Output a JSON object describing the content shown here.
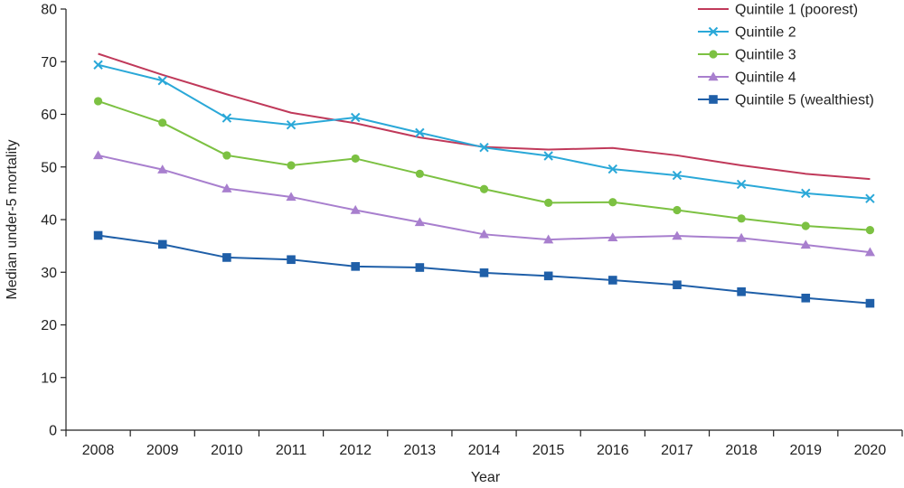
{
  "chart_data": {
    "type": "line",
    "xlabel": "Year",
    "ylabel": "Median under-5 mortality",
    "ylim": [
      0,
      80
    ],
    "yticks": [
      0,
      10,
      20,
      30,
      40,
      50,
      60,
      70,
      80
    ],
    "x": [
      "2008",
      "2009",
      "2010",
      "2011",
      "2012",
      "2013",
      "2014",
      "2015",
      "2016",
      "2017",
      "2018",
      "2019",
      "2020"
    ],
    "legend": "top-right",
    "grid": false,
    "series": [
      {
        "name": "Quintile 1 (poorest)",
        "color": "#c0395a",
        "marker": "none",
        "values": [
          71.5,
          67.5,
          63.8,
          60.3,
          58.3,
          55.6,
          53.8,
          53.3,
          53.6,
          52.2,
          50.3,
          48.7,
          47.7
        ]
      },
      {
        "name": "Quintile 2",
        "color": "#2aa8d8",
        "marker": "x",
        "values": [
          69.4,
          66.4,
          59.3,
          58.0,
          59.4,
          56.5,
          53.7,
          52.1,
          49.6,
          48.4,
          46.7,
          45.0,
          44.0
        ]
      },
      {
        "name": "Quintile 3",
        "color": "#7cc142",
        "marker": "circle",
        "values": [
          62.5,
          58.4,
          52.2,
          50.3,
          51.6,
          48.7,
          45.8,
          43.2,
          43.3,
          41.8,
          40.2,
          38.8,
          38.0
        ]
      },
      {
        "name": "Quintile 4",
        "color": "#a87fce",
        "marker": "triangle",
        "values": [
          52.2,
          49.5,
          45.9,
          44.3,
          41.8,
          39.5,
          37.2,
          36.2,
          36.6,
          36.9,
          36.5,
          35.2,
          33.8
        ]
      },
      {
        "name": "Quintile 5 (wealthiest)",
        "color": "#1f5fa8",
        "marker": "square",
        "values": [
          37.0,
          35.3,
          32.8,
          32.4,
          31.1,
          30.9,
          29.9,
          29.3,
          28.5,
          27.6,
          26.3,
          25.1,
          24.1
        ]
      }
    ]
  }
}
